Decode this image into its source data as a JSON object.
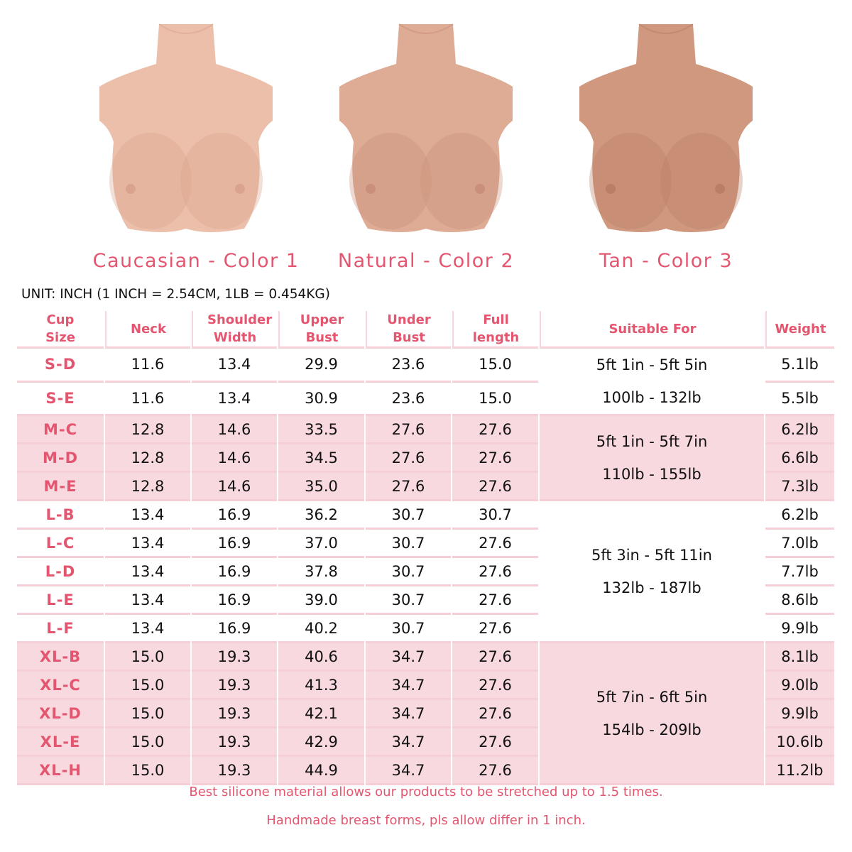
{
  "products": [
    {
      "label": "Caucasian - Color 1",
      "skin": "#ebbfaa",
      "shade": "#d9a38d"
    },
    {
      "label": "Natural - Color 2",
      "skin": "#deab95",
      "shade": "#c98f79"
    },
    {
      "label": "Tan - Color 3",
      "skin": "#cf987f",
      "shade": "#b97e66"
    }
  ],
  "unit_note": "UNIT: INCH (1 INCH = 2.54CM, 1LB = 0.454KG)",
  "table": {
    "headers": [
      "Cup Size",
      "Neck",
      "Shoulder Width",
      "Upper Bust",
      "Under Bust",
      "Full length",
      "Suitable For",
      "Weight"
    ],
    "groups": [
      {
        "highlight": false,
        "suitable": [
          "5ft 1in - 5ft 5in",
          "100lb - 132lb"
        ],
        "rows": [
          [
            "S-D",
            "11.6",
            "13.4",
            "29.9",
            "23.6",
            "15.0",
            "5.1lb"
          ],
          [
            "S-E",
            "11.6",
            "13.4",
            "30.9",
            "23.6",
            "15.0",
            "5.5lb"
          ]
        ]
      },
      {
        "highlight": true,
        "suitable": [
          "5ft 1in - 5ft 7in",
          "110lb - 155lb"
        ],
        "rows": [
          [
            "M-C",
            "12.8",
            "14.6",
            "33.5",
            "27.6",
            "27.6",
            "6.2lb"
          ],
          [
            "M-D",
            "12.8",
            "14.6",
            "34.5",
            "27.6",
            "27.6",
            "6.6lb"
          ],
          [
            "M-E",
            "12.8",
            "14.6",
            "35.0",
            "27.6",
            "27.6",
            "7.3lb"
          ]
        ]
      },
      {
        "highlight": false,
        "suitable": [
          "5ft 3in - 5ft 11in",
          "132lb - 187lb"
        ],
        "rows": [
          [
            "L-B",
            "13.4",
            "16.9",
            "36.2",
            "30.7",
            "30.7",
            "6.2lb"
          ],
          [
            "L-C",
            "13.4",
            "16.9",
            "37.0",
            "30.7",
            "27.6",
            "7.0lb"
          ],
          [
            "L-D",
            "13.4",
            "16.9",
            "37.8",
            "30.7",
            "27.6",
            "7.7lb"
          ],
          [
            "L-E",
            "13.4",
            "16.9",
            "39.0",
            "30.7",
            "27.6",
            "8.6lb"
          ],
          [
            "L-F",
            "13.4",
            "16.9",
            "40.2",
            "30.7",
            "27.6",
            "9.9lb"
          ]
        ]
      },
      {
        "highlight": true,
        "suitable": [
          "5ft 7in - 6ft 5in",
          "154lb - 209lb"
        ],
        "rows": [
          [
            "XL-B",
            "15.0",
            "19.3",
            "40.6",
            "34.7",
            "27.6",
            "8.1lb"
          ],
          [
            "XL-C",
            "15.0",
            "19.3",
            "41.3",
            "34.7",
            "27.6",
            "9.0lb"
          ],
          [
            "XL-D",
            "15.0",
            "19.3",
            "42.1",
            "34.7",
            "27.6",
            "9.9lb"
          ],
          [
            "XL-E",
            "15.0",
            "19.3",
            "42.9",
            "34.7",
            "27.6",
            "10.6lb"
          ],
          [
            "XL-H",
            "15.0",
            "19.3",
            "44.9",
            "34.7",
            "27.6",
            "11.2lb"
          ]
        ]
      }
    ]
  },
  "footer": {
    "line1": "Best silicone material allows our products to be stretched up to 1.5 times.",
    "line2": "Handmade breast forms, pls allow differ in 1 inch."
  },
  "colors": {
    "accent": "#e4566f",
    "band": "#f8d9df",
    "grid": "#f6cfd6"
  }
}
